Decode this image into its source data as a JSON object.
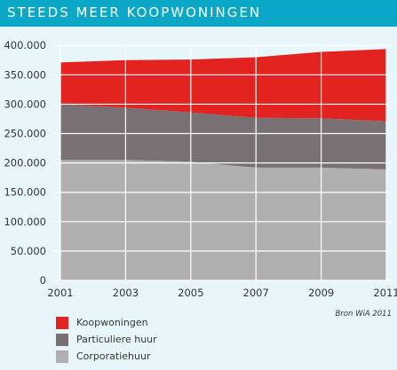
{
  "title": "STEEDS MEER KOOPWONINGEN",
  "source_note": "Bron WiA 2011",
  "colors": {
    "header": "#0aa8c6",
    "background": "#e6f6fa",
    "grid": "#ffffff"
  },
  "chart_data": {
    "type": "area",
    "stacked": true,
    "x": [
      2001,
      2003,
      2005,
      2007,
      2009,
      2011
    ],
    "x_tick_labels": [
      "2001",
      "2003",
      "2005",
      "2007",
      "2009",
      "2011"
    ],
    "y_tick_labels": [
      "0",
      "50.000",
      "100.000",
      "150.000",
      "200.000",
      "250.000",
      "300.000",
      "350.000",
      "400.000"
    ],
    "ylim": [
      0,
      400000
    ],
    "grid": true,
    "legend_position": "bottom-left",
    "series": [
      {
        "name": "Corporatiehuur",
        "color": "#b0afb0",
        "values": [
          205000,
          205000,
          202000,
          192000,
          192000,
          189000
        ]
      },
      {
        "name": "Particuliere huur",
        "color": "#787072",
        "values": [
          95000,
          89000,
          84000,
          85000,
          84000,
          82000
        ]
      },
      {
        "name": "Koopwoningen",
        "color": "#e32320",
        "values": [
          71000,
          81000,
          90000,
          103000,
          113000,
          123000
        ]
      }
    ],
    "legend_order": [
      "Koopwoningen",
      "Particuliere huur",
      "Corporatiehuur"
    ]
  }
}
